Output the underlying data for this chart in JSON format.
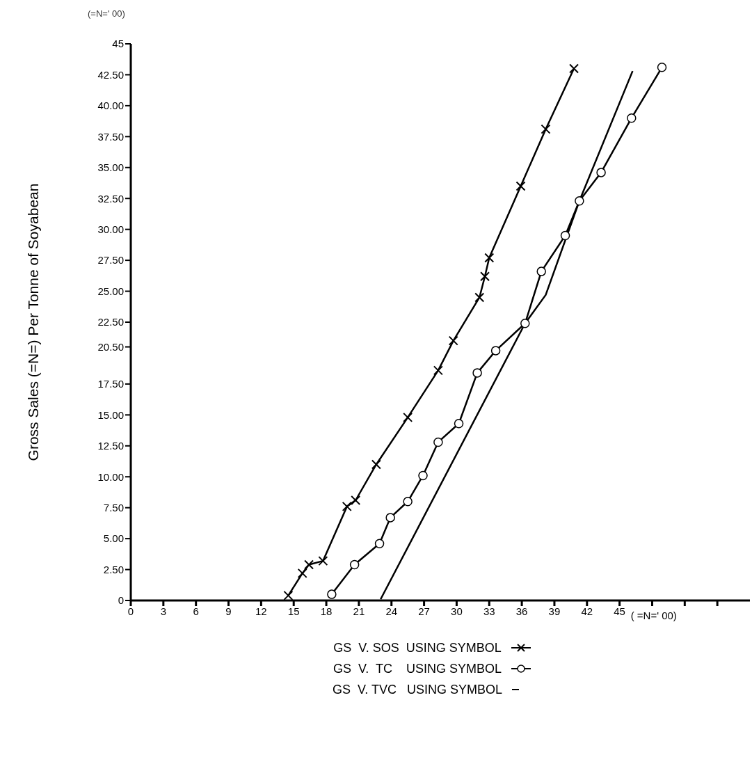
{
  "chart_data": {
    "type": "line",
    "ylabel": "Gross Sales (=N=) Per Tonne of Soyabean",
    "xlabel": "( =N=' 00)",
    "annotations": [
      "(=N=' 00)"
    ],
    "xlim": [
      0,
      57
    ],
    "xticks": [
      0,
      3,
      6,
      9,
      12,
      15,
      18,
      21,
      24,
      27,
      30,
      33,
      36,
      39,
      42,
      45,
      {
        "value": 48,
        "label": null
      },
      {
        "value": 51,
        "label": null
      },
      {
        "value": 54,
        "label": null
      }
    ],
    "ylim": [
      0,
      45
    ],
    "yticks": [
      0,
      {
        "value": 2.5,
        "label": "2.50"
      },
      {
        "value": 5,
        "label": "5.00"
      },
      {
        "value": 7.5,
        "label": "7.50"
      },
      {
        "value": 10,
        "label": "10.00"
      },
      {
        "value": 12.5,
        "label": "12.50"
      },
      {
        "value": 15,
        "label": "15.00"
      },
      {
        "value": 17.5,
        "label": "17.50"
      },
      {
        "value": 20.5,
        "label": "20.50"
      },
      {
        "value": 22.5,
        "label": "22.50"
      },
      {
        "value": 25,
        "label": "25.00"
      },
      {
        "value": 27.5,
        "label": "27.50"
      },
      {
        "value": 30,
        "label": "30.00"
      },
      {
        "value": 32.5,
        "label": "32.50"
      },
      {
        "value": 35,
        "label": "35.00"
      },
      {
        "value": 37.5,
        "label": "37.50"
      },
      {
        "value": 40,
        "label": "40.00"
      },
      {
        "value": 42.5,
        "label": "42.50"
      },
      45
    ],
    "grid": false,
    "legend": "bottom",
    "line_style": "solid",
    "series": [
      {
        "name": "GS  V. SOS  USING SYMBOL",
        "color": "#000000",
        "marker": "cross",
        "x": [
          14.5,
          15.8,
          16.4,
          17.7,
          19.9,
          20.7,
          22.6,
          25.5,
          28.3,
          29.7,
          32.1,
          32.6,
          33.0,
          35.9,
          38.2,
          40.8
        ],
        "values": [
          0.4,
          2.2,
          2.9,
          3.2,
          7.6,
          8.1,
          11.0,
          14.8,
          18.6,
          21.0,
          24.5,
          26.2,
          27.7,
          33.5,
          38.1,
          43.0
        ]
      },
      {
        "name": "GS  V.  TC    USING SYMBOL",
        "color": "#000000",
        "marker": "circle",
        "x": [
          18.5,
          20.6,
          22.9,
          23.9,
          25.5,
          26.9,
          28.3,
          30.2,
          31.9,
          33.6,
          36.3,
          37.8,
          40.0,
          41.3,
          43.3,
          46.1,
          48.9
        ],
        "values": [
          0.5,
          2.9,
          4.6,
          6.7,
          8.0,
          10.1,
          12.8,
          14.3,
          18.4,
          20.2,
          22.4,
          26.6,
          29.5,
          32.3,
          34.6,
          39.0,
          43.1
        ]
      },
      {
        "name": "GS  V. TVC   USING SYMBOL",
        "color": "#000000",
        "marker": "none",
        "x": [
          23.0,
          36.3,
          38.2,
          41.3,
          46.2
        ],
        "values": [
          0.1,
          22.4,
          24.7,
          32.3,
          42.8
        ]
      }
    ]
  }
}
